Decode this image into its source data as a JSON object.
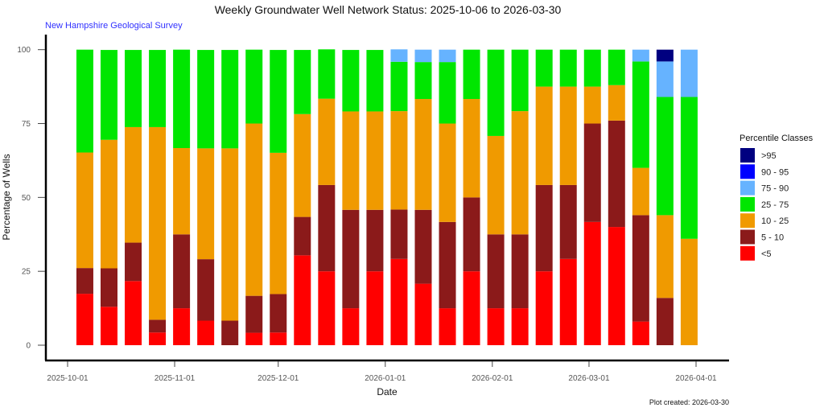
{
  "chart_data": {
    "type": "bar",
    "stacked": true,
    "title": "Weekly Groundwater Well Network Status: 2025-10-06 to 2026-03-30",
    "subtitle": "New Hampshire Geological Survey",
    "xlabel": "Date",
    "ylabel": "Percentage of Wells",
    "caption": "Plot created: 2026-03-30",
    "ylim": [
      0,
      100
    ],
    "yticks": [
      0,
      25,
      50,
      75,
      100
    ],
    "xlim": [
      "2025-09-28",
      "2026-04-10"
    ],
    "xticks": [
      "2025-10-01",
      "2025-11-01",
      "2025-12-01",
      "2026-01-01",
      "2026-02-01",
      "2026-03-01",
      "2026-04-01"
    ],
    "grid": false,
    "legend": {
      "title": "Percentile Classes",
      "position": "right",
      "entries": [
        {
          "key": "p95plus",
          "label": ">95",
          "color": "#000080"
        },
        {
          "key": "p90_95",
          "label": "90 - 95",
          "color": "#0000ff"
        },
        {
          "key": "p75_90",
          "label": "75 - 90",
          "color": "#66b3ff"
        },
        {
          "key": "p25_75",
          "label": "25 - 75",
          "color": "#00e600"
        },
        {
          "key": "p10_25",
          "label": "10 - 25",
          "color": "#f09a00"
        },
        {
          "key": "p5_10",
          "label": "5 - 10",
          "color": "#8b1a1a"
        },
        {
          "key": "p5minus",
          "label": "<5",
          "color": "#ff0000"
        }
      ]
    },
    "stack_order": [
      "p5minus",
      "p5_10",
      "p10_25",
      "p25_75",
      "p75_90",
      "p90_95",
      "p95plus"
    ],
    "categories": [
      "2025-10-06",
      "2025-10-13",
      "2025-10-20",
      "2025-10-27",
      "2025-11-03",
      "2025-11-10",
      "2025-11-17",
      "2025-11-24",
      "2025-12-01",
      "2025-12-08",
      "2025-12-15",
      "2025-12-22",
      "2025-12-29",
      "2026-01-05",
      "2026-01-12",
      "2026-01-19",
      "2026-01-26",
      "2026-02-02",
      "2026-02-09",
      "2026-02-16",
      "2026-02-23",
      "2026-03-02",
      "2026-03-09",
      "2026-03-16",
      "2026-03-23",
      "2026-03-30"
    ],
    "series": [
      {
        "name": "<5",
        "key": "p5minus",
        "values": [
          17.4,
          13.0,
          21.7,
          4.3,
          12.5,
          8.3,
          0,
          4.2,
          4.3,
          30.4,
          25.0,
          12.5,
          25.0,
          29.2,
          20.8,
          12.5,
          25.0,
          12.5,
          12.5,
          25.0,
          29.2,
          41.7,
          40.0,
          8.0,
          0,
          0
        ]
      },
      {
        "name": "5 - 10",
        "key": "p5_10",
        "values": [
          8.7,
          13.0,
          13.0,
          4.3,
          25.0,
          20.8,
          8.3,
          12.5,
          13.0,
          13.0,
          29.2,
          33.3,
          20.8,
          16.7,
          25.0,
          29.2,
          25.0,
          25.0,
          25.0,
          29.2,
          25.0,
          33.3,
          36.0,
          36.0,
          16.0,
          0
        ]
      },
      {
        "name": "10 - 25",
        "key": "p10_25",
        "values": [
          39.1,
          43.5,
          39.1,
          65.2,
          29.2,
          37.5,
          58.3,
          58.3,
          47.8,
          34.8,
          29.2,
          33.3,
          33.3,
          33.3,
          37.5,
          33.3,
          33.3,
          33.3,
          41.7,
          33.3,
          33.3,
          12.5,
          12.0,
          16.0,
          28.0,
          36.0
        ]
      },
      {
        "name": "25 - 75",
        "key": "p25_75",
        "values": [
          34.8,
          30.4,
          26.1,
          26.1,
          33.3,
          33.3,
          33.3,
          25.0,
          34.8,
          21.7,
          16.7,
          20.8,
          20.8,
          16.7,
          12.5,
          20.8,
          16.7,
          29.2,
          20.8,
          12.5,
          12.5,
          12.5,
          12.0,
          36.0,
          40.0,
          48.0
        ]
      },
      {
        "name": "75 - 90",
        "key": "p75_90",
        "values": [
          0,
          0,
          0,
          0,
          0,
          0,
          0,
          0,
          0,
          0,
          0,
          0,
          0,
          4.2,
          4.2,
          4.2,
          0,
          0,
          0,
          0,
          0,
          0,
          0,
          4.0,
          12.0,
          16.0
        ]
      },
      {
        "name": "90 - 95",
        "key": "p90_95",
        "values": [
          0,
          0,
          0,
          0,
          0,
          0,
          0,
          0,
          0,
          0,
          0,
          0,
          0,
          0,
          0,
          0,
          0,
          0,
          0,
          0,
          0,
          0,
          0,
          0,
          0,
          0
        ]
      },
      {
        "name": ">95",
        "key": "p95plus",
        "values": [
          0,
          0,
          0,
          0,
          0,
          0,
          0,
          0,
          0,
          0,
          0,
          0,
          0,
          0,
          0,
          0,
          0,
          0,
          0,
          0,
          0,
          0,
          0,
          0,
          4.0,
          0
        ]
      }
    ]
  }
}
